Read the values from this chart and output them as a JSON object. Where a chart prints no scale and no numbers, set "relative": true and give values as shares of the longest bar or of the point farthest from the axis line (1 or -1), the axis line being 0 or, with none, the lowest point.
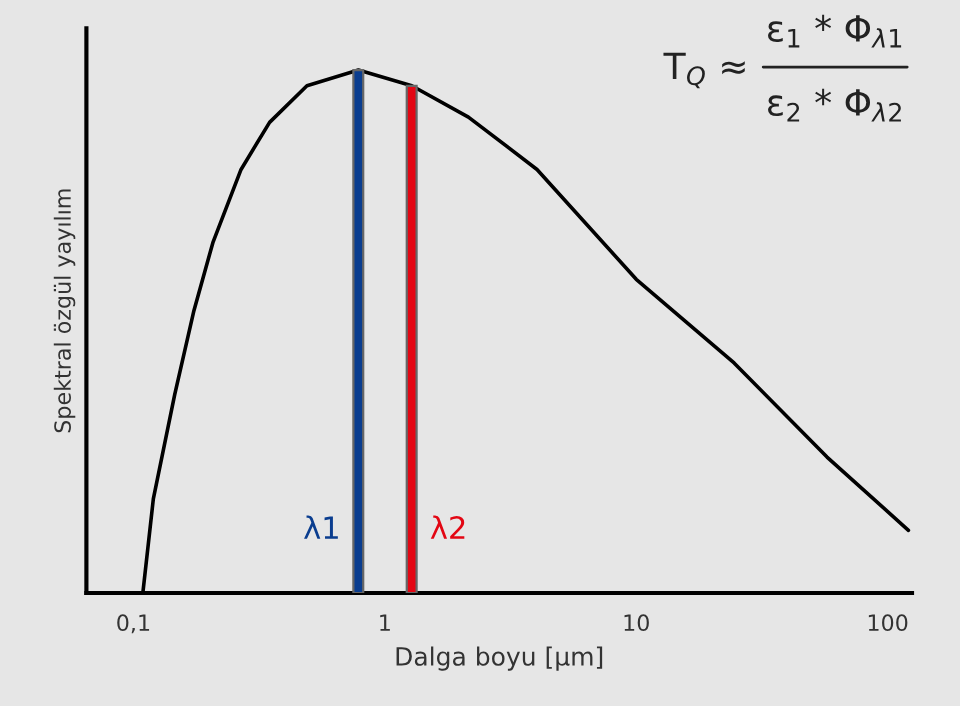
{
  "chart_data": {
    "type": "line",
    "relative": true,
    "log": "x",
    "xlabel": "Dalga boyu [µm]",
    "ylabel": "Spektral özgül yayılım",
    "xlim": [
      0.065,
      125
    ],
    "xticks": [
      {
        "value": 0.1,
        "label": "0,1"
      },
      1,
      10,
      100
    ],
    "grid": false,
    "marker": "none",
    "line_style": "solid",
    "series": [
      {
        "color": "#000000",
        "x": [
          0.109,
          0.12,
          0.146,
          0.174,
          0.207,
          0.268,
          0.348,
          0.49,
          0.785,
          1.28,
          2.15,
          4.03,
          10,
          24.5,
          57.4,
          121
        ],
        "values": [
          0,
          0.18,
          0.38,
          0.54,
          0.67,
          0.81,
          0.9,
          0.97,
          1.0,
          0.97,
          0.91,
          0.81,
          0.6,
          0.44,
          0.26,
          0.12
        ]
      },
      {
        "type": "bar",
        "name": "λ1",
        "color": "#0a3d8f",
        "x": [
          0.785
        ],
        "values": [
          1.0
        ]
      },
      {
        "type": "bar",
        "name": "λ2",
        "color": "#e30613",
        "x": [
          1.28
        ],
        "values": [
          0.97
        ]
      }
    ],
    "annotations": [
      "T$_{Q}$ ≈",
      "ε$_{1}$ * Φ$_{λ1}$",
      "ε$_{2}$ * Φ$_{λ2}$"
    ]
  }
}
